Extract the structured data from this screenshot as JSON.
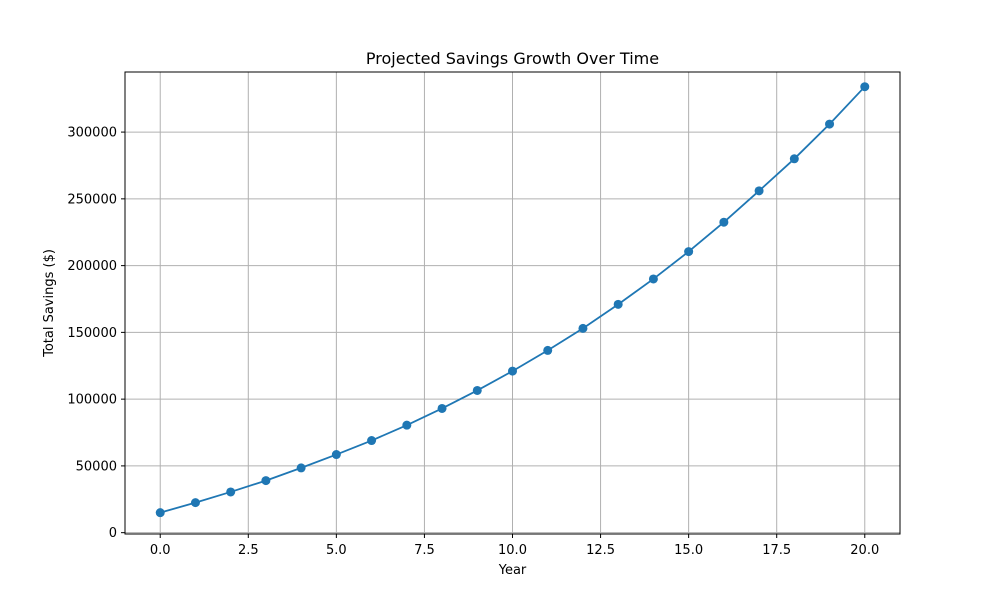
{
  "chart_data": {
    "type": "line",
    "title": "Projected Savings Growth Over Time",
    "xlabel": "Year",
    "ylabel": "Total Savings ($)",
    "xlim": [
      -1,
      21
    ],
    "ylim": [
      -1000,
      345000
    ],
    "grid": true,
    "xticks": [
      0,
      2.5,
      5,
      7.5,
      10,
      12.5,
      15,
      17.5,
      20
    ],
    "xtick_labels": [
      "0.0",
      "2.5",
      "5.0",
      "7.5",
      "10.0",
      "12.5",
      "15.0",
      "17.5",
      "20.0"
    ],
    "yticks": [
      0,
      50000,
      100000,
      150000,
      200000,
      250000,
      300000
    ],
    "ytick_labels": [
      "0",
      "50000",
      "100000",
      "150000",
      "200000",
      "250000",
      "300000"
    ],
    "colors": {
      "series": "#1f77b4",
      "grid": "#b0b0b0",
      "axis": "#000000"
    },
    "series": [
      {
        "name": "",
        "marker": "circle",
        "x": [
          0,
          1,
          2,
          3,
          4,
          5,
          6,
          7,
          8,
          9,
          10,
          11,
          12,
          13,
          14,
          15,
          16,
          17,
          18,
          19,
          20
        ],
        "y": [
          15000,
          22500,
          30500,
          39000,
          48500,
          58500,
          69000,
          80500,
          93000,
          106500,
          121000,
          136500,
          153000,
          171000,
          190000,
          210500,
          232500,
          256000,
          280000,
          306000,
          334000
        ]
      }
    ]
  }
}
